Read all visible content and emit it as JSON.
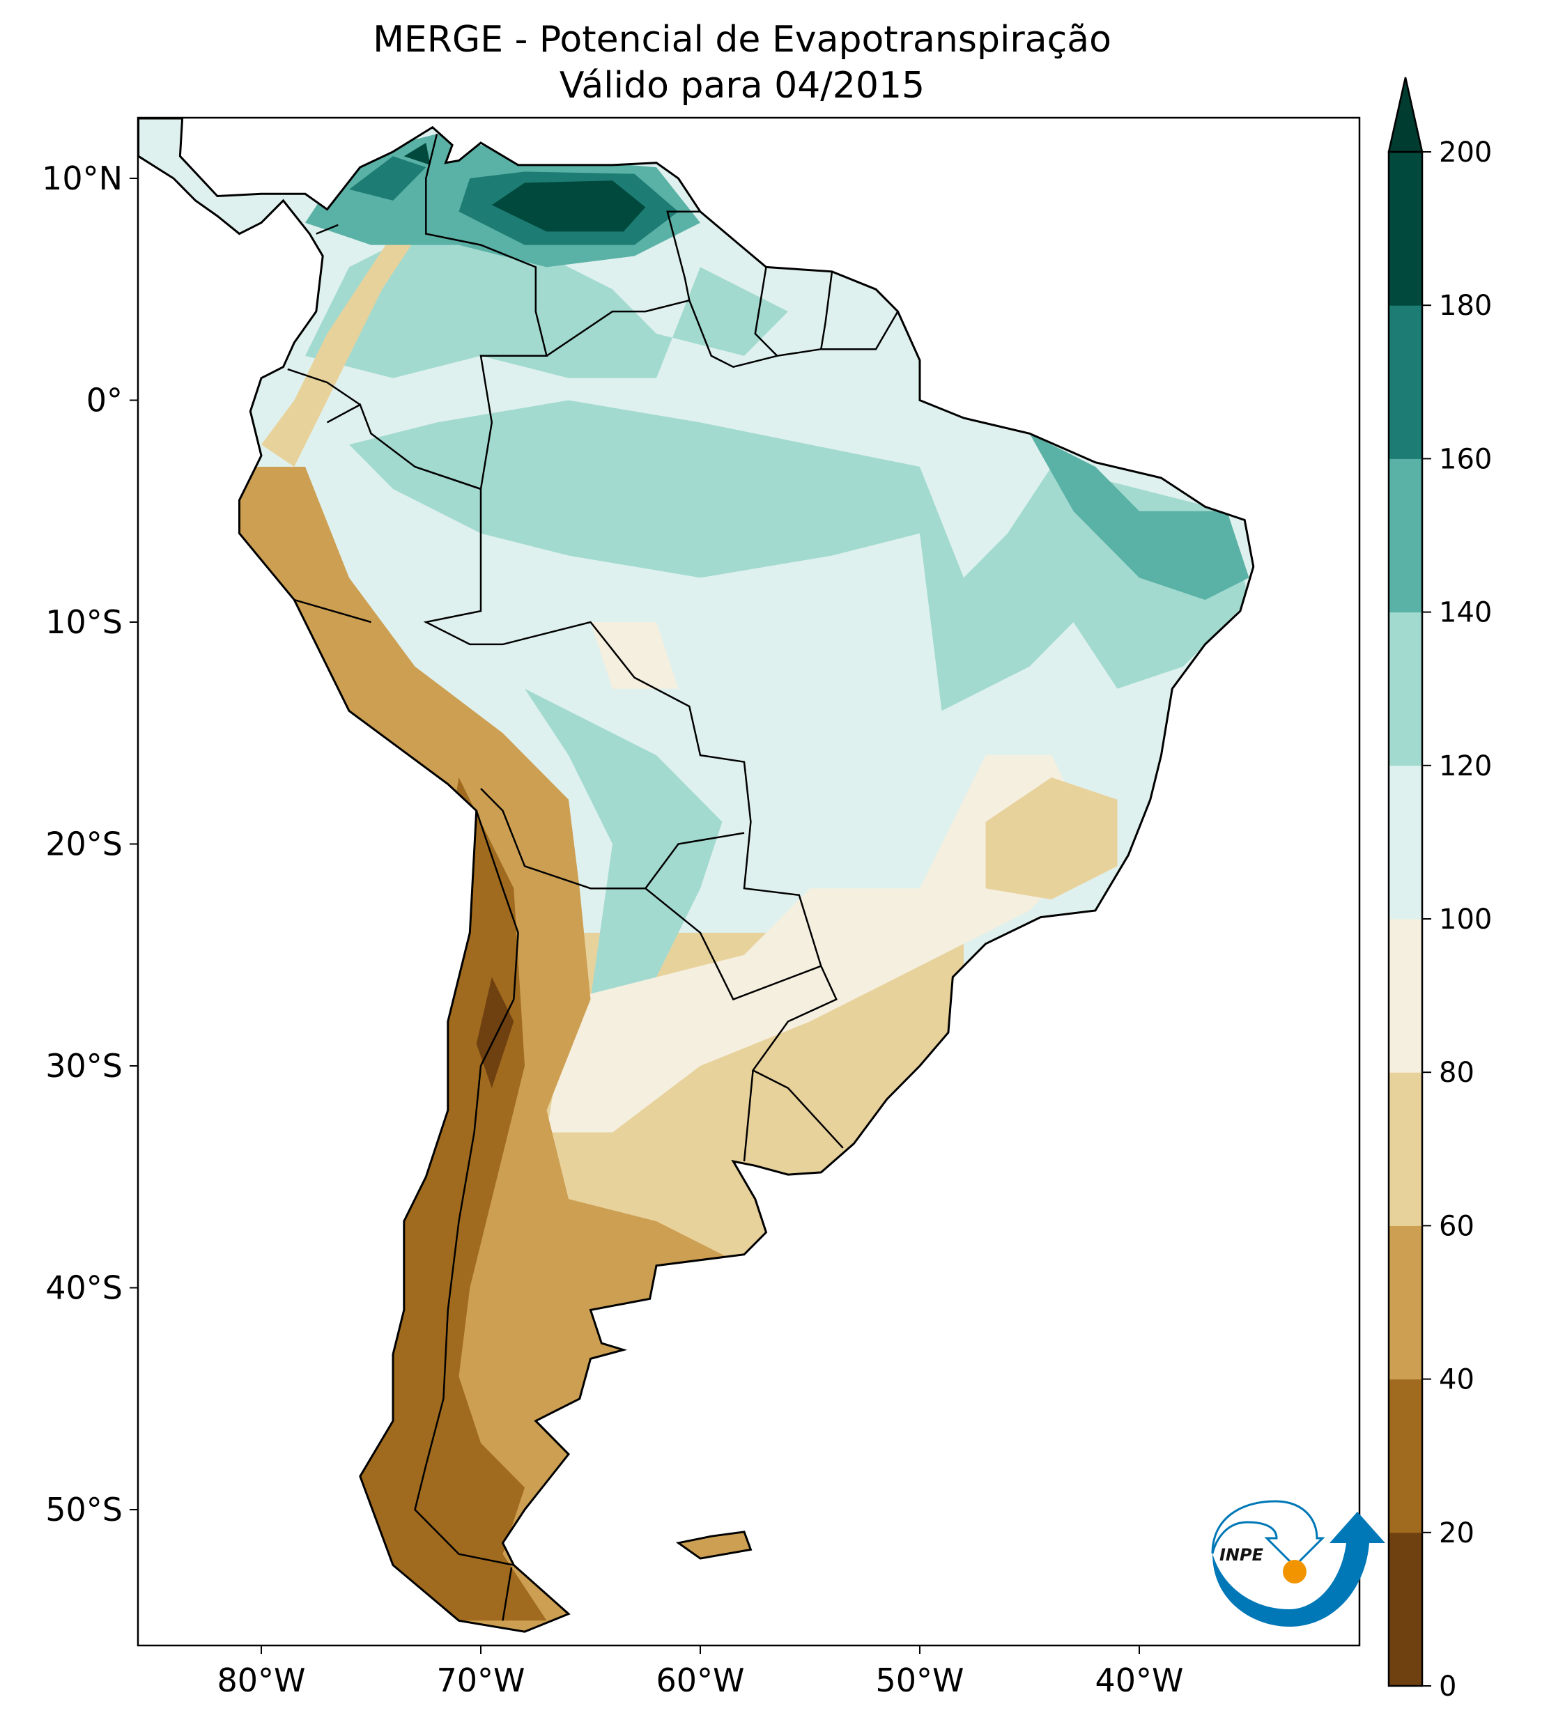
{
  "title": {
    "line1": "MERGE - Potencial de Evapotranspiração",
    "line2": "Válido para 04/2015"
  },
  "axes": {
    "lon_ticks": [
      "80°W",
      "70°W",
      "60°W",
      "50°W",
      "40°W"
    ],
    "lat_ticks": [
      "10°N",
      "0°",
      "10°S",
      "20°S",
      "30°S",
      "40°S",
      "50°S"
    ]
  },
  "colorbar": {
    "levels": [
      0,
      20,
      40,
      60,
      80,
      100,
      120,
      140,
      160,
      180,
      200
    ],
    "tick_labels": [
      "0",
      "20",
      "40",
      "60",
      "80",
      "100",
      "120",
      "140",
      "160",
      "180",
      "200"
    ],
    "colors": [
      "#6f4010",
      "#a16b1f",
      "#cd9f52",
      "#e8d29c",
      "#f5efdf",
      "#dff1ee",
      "#a2dad0",
      "#5ab1a6",
      "#1d7c74",
      "#00493c"
    ],
    "extend_max_color": "#003c30",
    "extend": "max"
  },
  "logo": {
    "text": "INPE",
    "colors": [
      "#0077b6",
      "#f29400"
    ]
  }
}
